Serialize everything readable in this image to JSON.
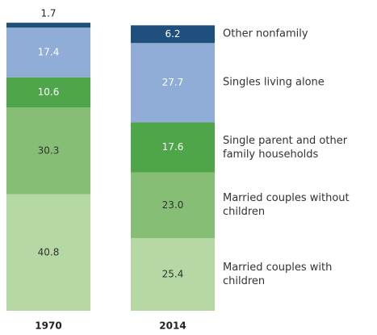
{
  "chart_data": {
    "type": "stacked_bar",
    "categories": [
      "1970",
      "2014"
    ],
    "series": [
      {
        "name": "Married couples with children",
        "color": "#b5d8a5",
        "values": [
          40.8,
          25.4
        ]
      },
      {
        "name": "Married couples without children",
        "color": "#86be76",
        "values": [
          30.3,
          23.0
        ],
        "value_labels": [
          "30.3",
          "23.0"
        ]
      },
      {
        "name": "Single parent and other family households",
        "color": "#4fa54a",
        "values": [
          10.6,
          17.6
        ]
      },
      {
        "name": "Singles living alone",
        "color": "#8fadd6",
        "values": [
          17.4,
          27.7
        ]
      },
      {
        "name": "Other nonfamily",
        "color": "#1f4f7d",
        "values": [
          1.7,
          6.2
        ]
      }
    ]
  }
}
